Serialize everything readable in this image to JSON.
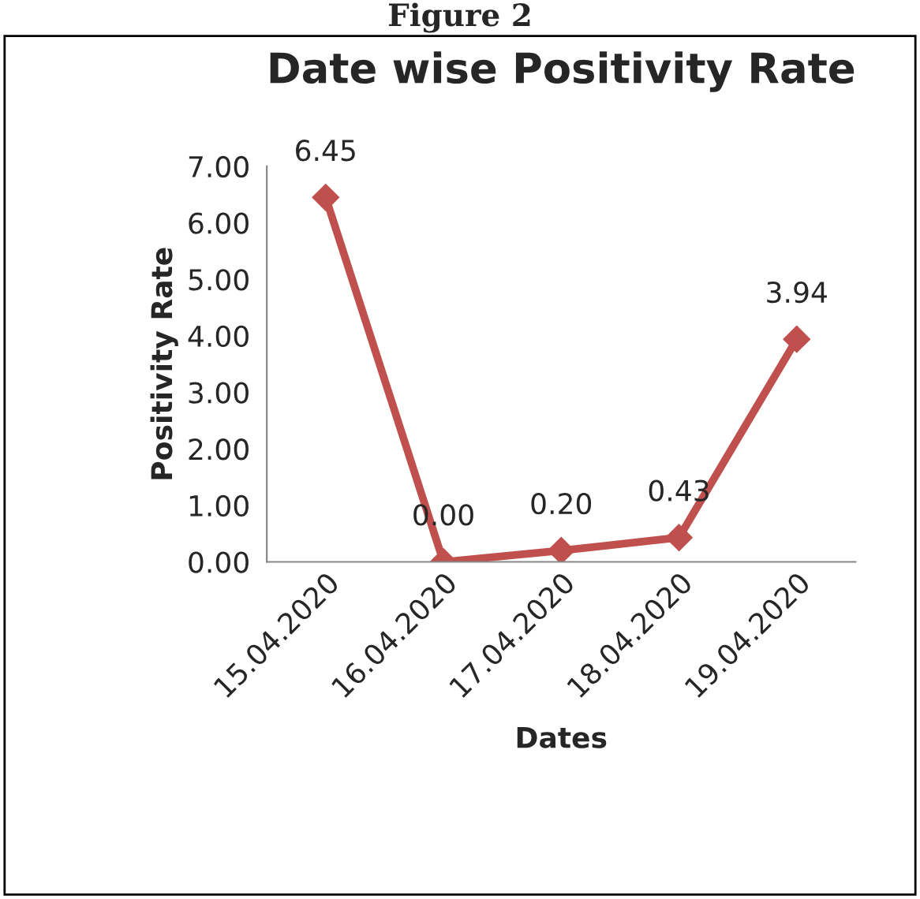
{
  "chart_data": {
    "type": "line",
    "title": "Date wise Positivity Rate",
    "xlabel": "Dates",
    "ylabel": "Positivity Rate",
    "annotations": [
      "Figure 2"
    ],
    "categories": [
      "15.04.2020",
      "16.04.2020",
      "17.04.2020",
      "18.04.2020",
      "19.04.2020"
    ],
    "series": [
      {
        "color": "#c0504d",
        "values": [
          6.45,
          0.0,
          0.2,
          0.43,
          3.94
        ]
      }
    ],
    "value_labels": [
      "6.45",
      "0.00",
      "0.20",
      "0.43",
      "3.94"
    ],
    "ylim": [
      0,
      7
    ],
    "yticks": [
      {
        "value": 0,
        "label": "0.00"
      },
      {
        "value": 1,
        "label": "1.00"
      },
      {
        "value": 2,
        "label": "2.00"
      },
      {
        "value": 3,
        "label": "3.00"
      },
      {
        "value": 4,
        "label": "4.00"
      },
      {
        "value": 5,
        "label": "5.00"
      },
      {
        "value": 6,
        "label": "6.00"
      },
      {
        "value": 7,
        "label": "7.00"
      }
    ],
    "grid": false,
    "legend": false,
    "marker": "diamond",
    "line_style": "solid"
  }
}
